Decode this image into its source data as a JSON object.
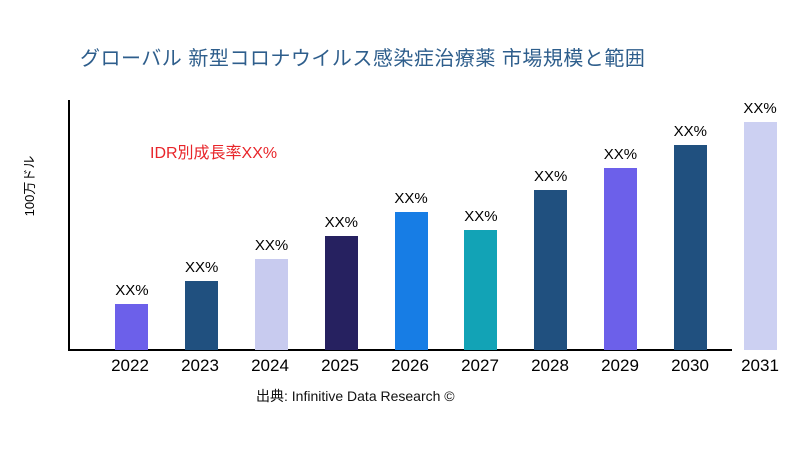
{
  "title": "グローバル 新型コロナウイルス感染症治療薬 市場規模と範囲",
  "annotation": "IDR別成長率XX%",
  "y_axis_label": "100万ドル",
  "source": "出典: Infinitive Data Research ©",
  "colors": {
    "title": "#2e5e8c",
    "annotation": "#e8252a",
    "axis": "#000000"
  },
  "chart_data": {
    "type": "bar",
    "title": "グローバル 新型コロナウイルス感染症治療薬 市場規模と範囲",
    "xlabel": "",
    "ylabel": "100万ドル",
    "categories": [
      "2022",
      "2023",
      "2024",
      "2025",
      "2026",
      "2027",
      "2028",
      "2029",
      "2030",
      "2031"
    ],
    "bar_labels": [
      "XX%",
      "XX%",
      "XX%",
      "XX%",
      "XX%",
      "XX%",
      "XX%",
      "XX%",
      "XX%",
      "XX%"
    ],
    "relative_heights_pct": [
      18.4,
      27.6,
      36.4,
      45.6,
      55.2,
      48.0,
      64.0,
      72.8,
      82.0,
      91.2
    ],
    "bar_colors": [
      "#6c60ea",
      "#20507f",
      "#c8cbef",
      "#262160",
      "#177de5",
      "#12a3b6",
      "#20507f",
      "#6c60ea",
      "#20507f",
      "#ccd0f2"
    ],
    "grid": false,
    "legend": false,
    "annotation_text": "IDR別成長率XX%",
    "value_labels_placeholder": true
  }
}
